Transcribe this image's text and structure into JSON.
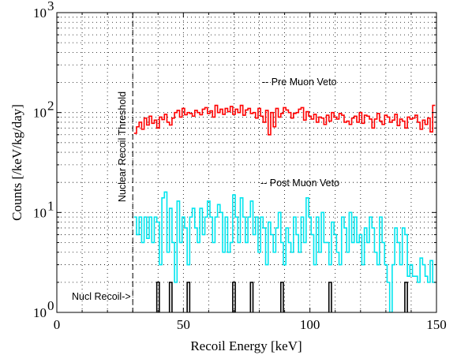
{
  "chart_data": {
    "type": "line",
    "title": "",
    "xlabel": "Recoil Energy [keV]",
    "ylabel": "Counts [/keV/kg/day]",
    "xlim": [
      0,
      150
    ],
    "ylim": [
      1,
      1000
    ],
    "yscale": "log",
    "grid": true,
    "x_ticks": [
      "0",
      "50",
      "100",
      "150"
    ],
    "y_ticks": [
      {
        "base": "10",
        "exp": "0"
      },
      {
        "base": "10",
        "exp": "1"
      },
      {
        "base": "10",
        "exp": "2"
      },
      {
        "base": "10",
        "exp": "3"
      }
    ],
    "colors": {
      "pre_veto": "#ff0000",
      "post_veto": "#00e5ee",
      "nuclear_recoils": "#000000",
      "threshold": "#000000",
      "grid": "#000000"
    },
    "threshold": {
      "x": 30,
      "label": "Nuclear Recoil Threshold"
    },
    "annotations": {
      "pre": "-- Pre Muon Veto",
      "post": "-- Post Muon Veto",
      "nucl": "Nucl Recoil->"
    },
    "series": [
      {
        "key": "pre_veto",
        "style": "step",
        "x": [
          31,
          32,
          33,
          34,
          35,
          36,
          37,
          38,
          39,
          40,
          41,
          42,
          43,
          44,
          45,
          46,
          47,
          48,
          49,
          50,
          51,
          52,
          53,
          54,
          55,
          56,
          57,
          58,
          59,
          60,
          61,
          62,
          63,
          64,
          65,
          66,
          67,
          68,
          69,
          70,
          71,
          72,
          73,
          74,
          75,
          76,
          77,
          78,
          79,
          80,
          81,
          82,
          83,
          84,
          85,
          86,
          87,
          88,
          89,
          90,
          91,
          92,
          93,
          94,
          95,
          96,
          97,
          98,
          99,
          100,
          101,
          102,
          103,
          104,
          105,
          106,
          107,
          108,
          109,
          110,
          111,
          112,
          113,
          114,
          115,
          116,
          117,
          118,
          119,
          120,
          121,
          122,
          123,
          124,
          125,
          126,
          127,
          128,
          129,
          130,
          131,
          132,
          133,
          134,
          135,
          136,
          137,
          138,
          139,
          140,
          141,
          142,
          143,
          144,
          145,
          146,
          147,
          148,
          149
        ],
        "values": [
          62,
          72,
          80,
          68,
          88,
          75,
          92,
          78,
          84,
          70,
          90,
          85,
          96,
          80,
          75,
          88,
          100,
          105,
          90,
          110,
          95,
          100,
          98,
          92,
          105,
          100,
          95,
          108,
          112,
          98,
          104,
          90,
          118,
          100,
          108,
          96,
          110,
          102,
          115,
          96,
          108,
          100,
          118,
          94,
          106,
          110,
          98,
          100,
          88,
          110,
          92,
          80,
          105,
          60,
          100,
          72,
          110,
          90,
          98,
          112,
          106,
          100,
          88,
          98,
          100,
          108,
          112,
          84,
          102,
          92,
          86,
          96,
          80,
          90,
          88,
          76,
          94,
          82,
          100,
          90,
          86,
          98,
          94,
          80,
          82,
          76,
          88,
          92,
          80,
          100,
          78,
          94,
          92,
          86,
          70,
          86,
          98,
          82,
          76,
          94,
          90,
          80,
          84,
          96,
          74,
          86,
          82,
          70,
          90,
          86,
          88,
          94,
          80,
          68,
          84,
          76,
          88,
          64,
          118
        ]
      },
      {
        "key": "post_veto",
        "style": "step",
        "x": [
          31,
          32,
          33,
          34,
          35,
          36,
          37,
          38,
          39,
          40,
          41,
          42,
          43,
          44,
          45,
          46,
          47,
          48,
          49,
          50,
          51,
          52,
          53,
          54,
          55,
          56,
          57,
          58,
          59,
          60,
          61,
          62,
          63,
          64,
          65,
          66,
          67,
          68,
          69,
          70,
          71,
          72,
          73,
          74,
          75,
          76,
          77,
          78,
          79,
          80,
          81,
          82,
          83,
          84,
          85,
          86,
          87,
          88,
          89,
          90,
          91,
          92,
          93,
          94,
          95,
          96,
          97,
          98,
          99,
          100,
          101,
          102,
          103,
          104,
          105,
          106,
          107,
          108,
          109,
          110,
          111,
          112,
          113,
          114,
          115,
          116,
          117,
          118,
          119,
          120,
          121,
          122,
          123,
          124,
          125,
          126,
          127,
          128,
          129,
          130,
          131,
          132,
          133,
          134,
          135,
          136,
          137,
          138,
          139,
          140,
          141,
          142,
          143,
          144,
          145,
          146,
          147,
          148,
          149
        ],
        "values": [
          9,
          6,
          9,
          5,
          9,
          5.5,
          9,
          5,
          9,
          8,
          3,
          14,
          16,
          4,
          11,
          5,
          2,
          13,
          5,
          9,
          7,
          3,
          9,
          11,
          7,
          5,
          11,
          6,
          9,
          13,
          9,
          5,
          9,
          12,
          10,
          4,
          9,
          4,
          5,
          15,
          9,
          5,
          14,
          9,
          5,
          9,
          13,
          6,
          9,
          4,
          9,
          7,
          3,
          8,
          6,
          4,
          7,
          10,
          5,
          3,
          7,
          5,
          4,
          9,
          6,
          4,
          9,
          5,
          14,
          9,
          6,
          3,
          9,
          4,
          10,
          5,
          5,
          3,
          8,
          6,
          4,
          3,
          9,
          7,
          4,
          10,
          5,
          9,
          5,
          6,
          3,
          7,
          5,
          9,
          7,
          4,
          3,
          9,
          5,
          3,
          2,
          1,
          3,
          7,
          5,
          3,
          7,
          6,
          2.3,
          3,
          2.3,
          2.3,
          2,
          3.5,
          3,
          2.3,
          2,
          3.3,
          2
        ]
      },
      {
        "key": "nuclear_recoils",
        "style": "impulse",
        "x": [
          40,
          45,
          52,
          70,
          77,
          89,
          108,
          138
        ],
        "values": [
          2,
          2,
          2,
          2,
          2,
          2,
          2,
          2
        ]
      }
    ]
  }
}
